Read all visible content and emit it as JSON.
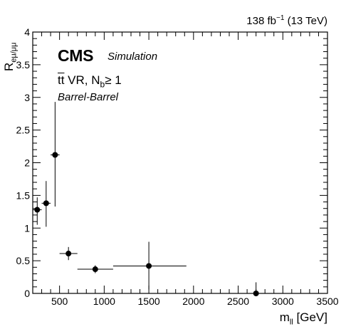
{
  "header": {
    "lumi_value": "138 fb",
    "lumi_exp": "−1",
    "energy": " (13 TeV)"
  },
  "labels": {
    "cms": "CMS",
    "simulation": "Simulation",
    "region_main": "tt",
    "region_mid": " VR, N",
    "region_sub": "b",
    "region_tail": "≥ 1",
    "category": "Barrel-Barrel"
  },
  "chart_data": {
    "type": "scatter",
    "xlabel_main": "m",
    "xlabel_sub": "ll",
    "xlabel_unit": " [GeV]",
    "ylabel_main": "R",
    "ylabel_sub": "eμ/μμ",
    "xlim": [
      200,
      3500
    ],
    "ylim": [
      0,
      4
    ],
    "x_ticks": [
      500,
      1000,
      1500,
      2000,
      2500,
      3000,
      3500
    ],
    "y_ticks": [
      0,
      0.5,
      1,
      1.5,
      2,
      2.5,
      3,
      3.5,
      4
    ],
    "points": [
      {
        "x": 250,
        "xlo": 200,
        "xhi": 300,
        "y": 1.28,
        "ylo": 1.05,
        "yhi": 1.47
      },
      {
        "x": 350,
        "xlo": 300,
        "xhi": 400,
        "y": 1.38,
        "ylo": 1.02,
        "yhi": 1.72
      },
      {
        "x": 450,
        "xlo": 400,
        "xhi": 500,
        "y": 2.12,
        "ylo": 1.33,
        "yhi": 2.93
      },
      {
        "x": 600,
        "xlo": 500,
        "xhi": 700,
        "y": 0.61,
        "ylo": 0.51,
        "yhi": 0.71
      },
      {
        "x": 900,
        "xlo": 700,
        "xhi": 1100,
        "y": 0.37,
        "ylo": 0.31,
        "yhi": 0.43
      },
      {
        "x": 1500,
        "xlo": 1100,
        "xhi": 1920,
        "y": 0.42,
        "ylo": 0.06,
        "yhi": 0.79
      },
      {
        "x": 2700,
        "xlo": 2700,
        "xhi": 2700,
        "y": 0.0,
        "ylo": 0.0,
        "yhi": 0.17
      }
    ],
    "grid": false
  }
}
